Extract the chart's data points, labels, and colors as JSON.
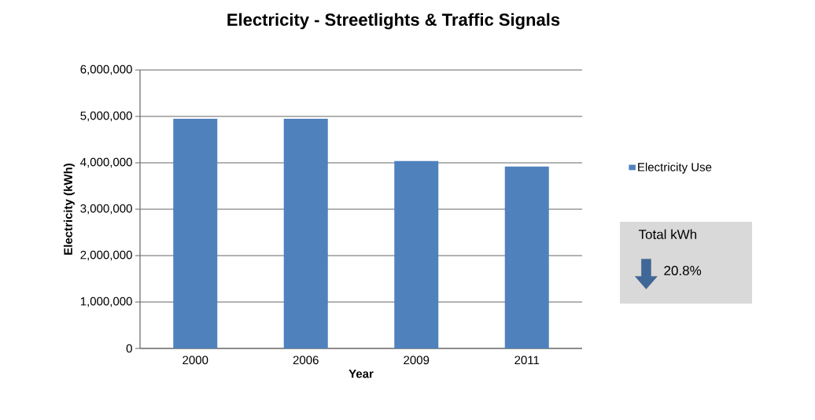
{
  "chart_data": {
    "type": "bar",
    "title": "Electricity - Streetlights & Traffic Signals",
    "xlabel": "Year",
    "ylabel": "Electricity (kWh)",
    "categories": [
      "2000",
      "2006",
      "2009",
      "2011"
    ],
    "series": [
      {
        "name": "Electricity Use",
        "color": "#4f81bd",
        "values": [
          4950000,
          4950000,
          4040000,
          3920000
        ]
      }
    ],
    "ylim": [
      0,
      6000000
    ],
    "yticks": [
      {
        "value": 0,
        "label": "0"
      },
      {
        "value": 1000000,
        "label": "1,000,000"
      },
      {
        "value": 2000000,
        "label": "2,000,000"
      },
      {
        "value": 3000000,
        "label": "3,000,000"
      },
      {
        "value": 4000000,
        "label": "4,000,000"
      },
      {
        "value": 5000000,
        "label": "5,000,000"
      },
      {
        "value": 6000000,
        "label": "6,000,000"
      }
    ],
    "grid": "y",
    "legend": "right",
    "annotations": [
      "Total kWh",
      "20.8%"
    ]
  }
}
